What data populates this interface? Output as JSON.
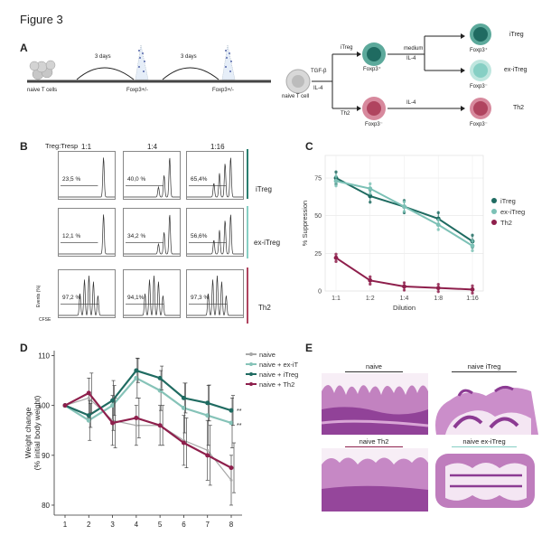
{
  "figure_title": "Figure 3",
  "panel_labels": {
    "a": "A",
    "b": "B",
    "c": "C",
    "d": "D",
    "e": "E"
  },
  "panel_a": {
    "left": {
      "naive_label": "naive T cells",
      "days1": "3 days",
      "days2": "3 days",
      "foxp3_1": "Foxp3+/-",
      "foxp3_2": "Foxp3+/-"
    },
    "right": {
      "naive_label": "naive T cell",
      "tgfb": "TGF-β",
      "il4_a": "IL-4",
      "itreg": "iTreg",
      "th2": "Th2",
      "foxp3pos": "Foxp3⁺",
      "medium": "medium",
      "il4_b": "IL-4",
      "il4_c": "IL-4",
      "foxp3pos_out": "Foxp3⁺",
      "foxp3neg_ex": "Foxp3⁻",
      "foxp3neg_th2": "Foxp3⁻",
      "foxp3neg_out": "Foxp3⁻",
      "itreg_out": "iTreg",
      "ex_itreg_out": "ex-iTreg",
      "th2_out": "Th2",
      "colors": {
        "itreg": "#2a7f70",
        "ex_itreg": "#86cfc4",
        "th2": "#b0445f",
        "naive": "#bdbdbd"
      }
    }
  },
  "panel_b": {
    "ratio_label": "Treg:Tresp",
    "columns": [
      "1:1",
      "1:4",
      "1:16"
    ],
    "rows": [
      "iTreg",
      "ex-iTreg",
      "Th2"
    ],
    "percentages": [
      [
        "23,5 %",
        "40,0 %",
        "65,4%"
      ],
      [
        "12,1 %",
        "34,2 %",
        "56,6%"
      ],
      [
        "97,2 %",
        "94,1%",
        "97,3 %"
      ]
    ],
    "ylabel": "Events (%)",
    "xlabel": "CFSE",
    "row_colors": [
      "#2a7f70",
      "#86cfc4",
      "#b0445f"
    ]
  },
  "chart_data": [
    {
      "type": "line",
      "panel": "C",
      "xlabel": "Dilution",
      "ylabel": "% Suppression",
      "categories": [
        "1:1",
        "1:2",
        "1:4",
        "1:8",
        "1:16"
      ],
      "ylim": [
        0,
        90
      ],
      "yticks": [
        0,
        25,
        50,
        75
      ],
      "grid": true,
      "legend": "right",
      "series": [
        {
          "name": "iTreg",
          "color": "#1f6b61",
          "values": [
            75,
            63,
            56,
            48,
            33
          ]
        },
        {
          "name": "ex-iTreg",
          "color": "#7cc1b6",
          "values": [
            73,
            68,
            56,
            44,
            30
          ]
        },
        {
          "name": "Th2",
          "color": "#8e1f4c",
          "values": [
            22,
            7,
            3,
            2,
            1
          ]
        }
      ]
    },
    {
      "type": "line",
      "panel": "D",
      "ylabel": "Weight change\n(% initial body weight)",
      "x": [
        1,
        2,
        3,
        4,
        5,
        6,
        7,
        8
      ],
      "ylim": [
        78,
        111
      ],
      "yticks": [
        80,
        90,
        100,
        110
      ],
      "legend": "top-right",
      "series": [
        {
          "name": "naive",
          "color": "#a8a8a8",
          "values": [
            100,
            101.5,
            97,
            96,
            96,
            93,
            91,
            85
          ]
        },
        {
          "name": "naive + ex-iTreg",
          "color": "#86c3b8",
          "values": [
            100,
            97,
            100,
            105.5,
            103,
            99.5,
            98,
            96.5
          ]
        },
        {
          "name": "naive + iTreg",
          "color": "#1f6b61",
          "values": [
            100,
            98,
            101,
            107,
            105.5,
            101.5,
            100.5,
            99
          ]
        },
        {
          "name": "naive + Th2",
          "color": "#8e1f4c",
          "values": [
            100,
            102.5,
            96.5,
            97.5,
            96,
            92.5,
            90,
            87.5
          ]
        }
      ],
      "annotations": [
        "**",
        "**"
      ]
    }
  ],
  "panel_e": {
    "labels": [
      "naive",
      "naive iTreg",
      "naive Th2",
      "naive ex-iTreg"
    ]
  }
}
